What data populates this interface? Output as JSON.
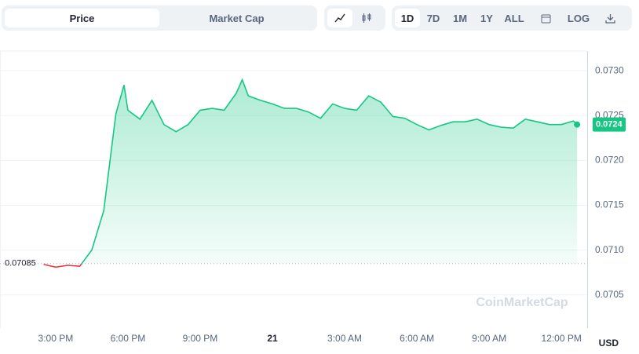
{
  "toolbar": {
    "tabs": [
      "Price",
      "Market Cap"
    ],
    "ranges": [
      "1D",
      "7D",
      "1M",
      "1Y",
      "ALL"
    ],
    "log": "LOG"
  },
  "chart_data": {
    "type": "line",
    "currency": "USD",
    "watermark": "CoinMarketCap",
    "baseline": {
      "value": 0.07085,
      "label": "0.07085"
    },
    "current_price": {
      "value": 0.0724,
      "label": "0.0724"
    },
    "x": [
      14.5,
      15,
      15.5,
      16,
      16.5,
      17,
      17.5,
      17.84,
      18,
      18.5,
      19,
      19.5,
      20,
      20.5,
      21,
      21.5,
      22,
      22.5,
      22.75,
      23,
      23.5,
      24,
      24.5,
      25,
      25.5,
      26,
      26.5,
      27,
      27.5,
      28,
      28.5,
      29,
      29.5,
      30,
      30.5,
      31,
      31.5,
      32,
      32.5,
      33,
      33.5,
      34,
      34.5,
      35,
      35.5,
      36,
      36.5,
      36.65
    ],
    "series": [
      {
        "name": "Price",
        "color": "#16c784",
        "down_color": "#ea3943",
        "values": [
          0.07084,
          0.07081,
          0.07083,
          0.07082,
          0.071,
          0.07144,
          0.07252,
          0.07284,
          0.07256,
          0.07246,
          0.07267,
          0.0724,
          0.07232,
          0.0724,
          0.07256,
          0.07258,
          0.07256,
          0.07275,
          0.0729,
          0.07272,
          0.07267,
          0.07263,
          0.07258,
          0.07258,
          0.07254,
          0.07247,
          0.07263,
          0.07258,
          0.07256,
          0.07272,
          0.07265,
          0.07249,
          0.07247,
          0.0724,
          0.07234,
          0.07239,
          0.07243,
          0.07243,
          0.07246,
          0.0724,
          0.07237,
          0.07236,
          0.07246,
          0.07243,
          0.0724,
          0.0724,
          0.07244,
          0.0724
        ]
      }
    ],
    "xlim": [
      12.69,
      37.07
    ],
    "xticks": [
      {
        "value": 15,
        "label": "3:00 PM"
      },
      {
        "value": 18,
        "label": "6:00 PM"
      },
      {
        "value": 21,
        "label": "9:00 PM"
      },
      {
        "value": 24,
        "label": "21"
      },
      {
        "value": 27,
        "label": "3:00 AM"
      },
      {
        "value": 30,
        "label": "6:00 AM"
      },
      {
        "value": 33,
        "label": "9:00 AM"
      },
      {
        "value": 36,
        "label": "12:00 PM"
      }
    ],
    "ylim": [
      0.07013,
      0.07322
    ],
    "yticks": [
      0.0705,
      {
        "value": 0.071,
        "label": "0.0710"
      },
      0.0715,
      {
        "value": 0.072,
        "label": "0.0720"
      },
      0.0725,
      {
        "value": 0.073,
        "label": "0.0730"
      }
    ],
    "grid": true
  }
}
